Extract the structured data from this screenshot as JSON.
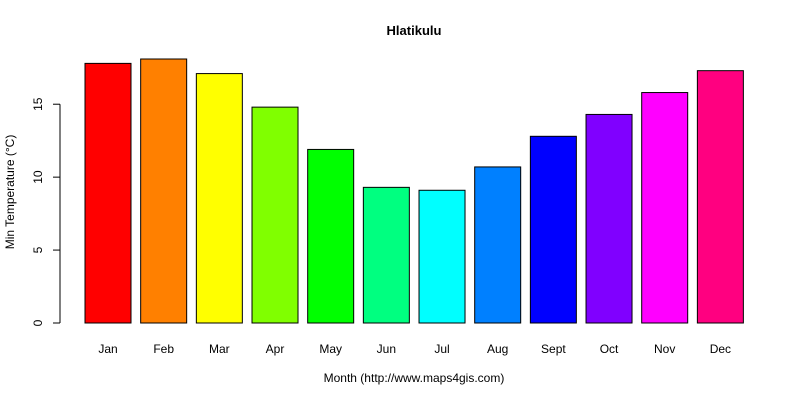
{
  "chart_data": {
    "type": "bar",
    "title": "Hlatikulu",
    "xlabel": "Month (http://www.maps4gis.com)",
    "ylabel": "Min Temperature (°C)",
    "categories": [
      "Jan",
      "Feb",
      "Mar",
      "Apr",
      "May",
      "Jun",
      "Jul",
      "Aug",
      "Sept",
      "Oct",
      "Nov",
      "Dec"
    ],
    "values": [
      17.8,
      18.1,
      17.1,
      14.8,
      11.9,
      9.3,
      9.1,
      10.7,
      12.8,
      14.3,
      15.8,
      17.3
    ],
    "colors": [
      "#FF0000",
      "#FF8000",
      "#FFFF00",
      "#80FF00",
      "#00FF00",
      "#00FF80",
      "#00FFFF",
      "#0080FF",
      "#0000FF",
      "#8000FF",
      "#FF00FF",
      "#FF0080"
    ],
    "ylim": [
      0,
      18.1
    ],
    "yticks": [
      0,
      5,
      10,
      15
    ],
    "grid": false,
    "legend": "none"
  }
}
